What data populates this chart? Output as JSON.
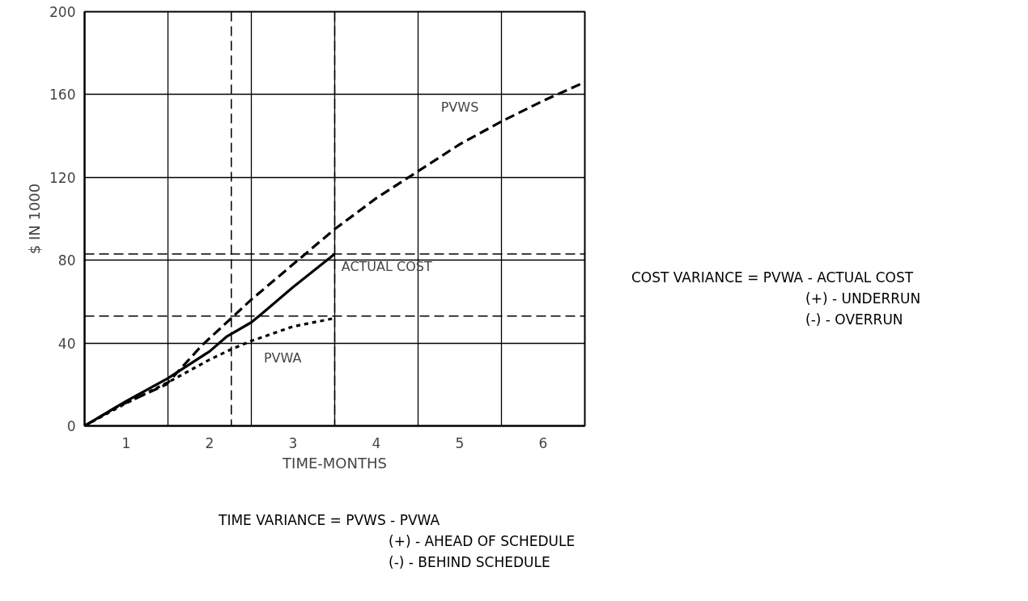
{
  "chart_data": {
    "type": "line",
    "xlabel": "TIME-MONTHS",
    "ylabel": "$ IN 1000",
    "xlim": [
      0,
      6
    ],
    "ylim": [
      0,
      200
    ],
    "xticks": [
      {
        "value": 0,
        "label": null
      },
      {
        "value": 0.5,
        "label": "1"
      },
      {
        "value": 1,
        "label": null
      },
      {
        "value": 1.5,
        "label": "2"
      },
      {
        "value": 2,
        "label": null
      },
      {
        "value": 2.5,
        "label": "3"
      },
      {
        "value": 3,
        "label": null
      },
      {
        "value": 3.5,
        "label": "4"
      },
      {
        "value": 4,
        "label": null
      },
      {
        "value": 4.5,
        "label": "5"
      },
      {
        "value": 5,
        "label": null
      },
      {
        "value": 5.5,
        "label": "6"
      },
      {
        "value": 6,
        "label": null
      }
    ],
    "yticks": [
      0,
      40,
      80,
      120,
      160,
      200
    ],
    "grid": true,
    "marker": "none",
    "series": [
      {
        "name": "PVWS",
        "color": "#000000",
        "line_style": "dashed",
        "x": [
          0,
          0.38,
          0.98,
          1.41,
          1.76,
          2,
          2.5,
          3,
          3.5,
          4,
          4.5,
          5,
          5.5,
          6
        ],
        "values": [
          0,
          9,
          20,
          39,
          52,
          61,
          78,
          95,
          110,
          123,
          136,
          147,
          157,
          166
        ]
      },
      {
        "name": "ACTUAL COST",
        "color": "#000000",
        "line_style": "solid",
        "x": [
          0,
          0.5,
          1,
          1.5,
          1.7,
          2,
          2.15,
          2.5,
          3
        ],
        "values": [
          0,
          12,
          23,
          36,
          43,
          50,
          55,
          67,
          83
        ]
      },
      {
        "name": "PVWA",
        "color": "#000000",
        "line_style": "dotted",
        "x": [
          0,
          0.5,
          1,
          1.5,
          1.76,
          2,
          2.5,
          3
        ],
        "values": [
          0,
          11,
          21,
          32,
          37,
          41,
          48,
          52
        ]
      }
    ],
    "ref_lines": [
      {
        "axis": "y",
        "value": 83,
        "line_style": "dashed"
      },
      {
        "axis": "y",
        "value": 53,
        "line_style": "dashed"
      },
      {
        "axis": "x",
        "value": 1.76,
        "line_style": "dashed"
      },
      {
        "axis": "x",
        "value": 3,
        "line_style": "dashed"
      }
    ],
    "annotations": [
      "COST VARIANCE = PVWA - ACTUAL COST",
      "(+) - UNDERRUN",
      "(-) - OVERRUN",
      "TIME VARIANCE = PVWS - PVWA",
      "(+) - AHEAD OF SCHEDULE",
      "(-) - BEHIND SCHEDULE"
    ]
  }
}
